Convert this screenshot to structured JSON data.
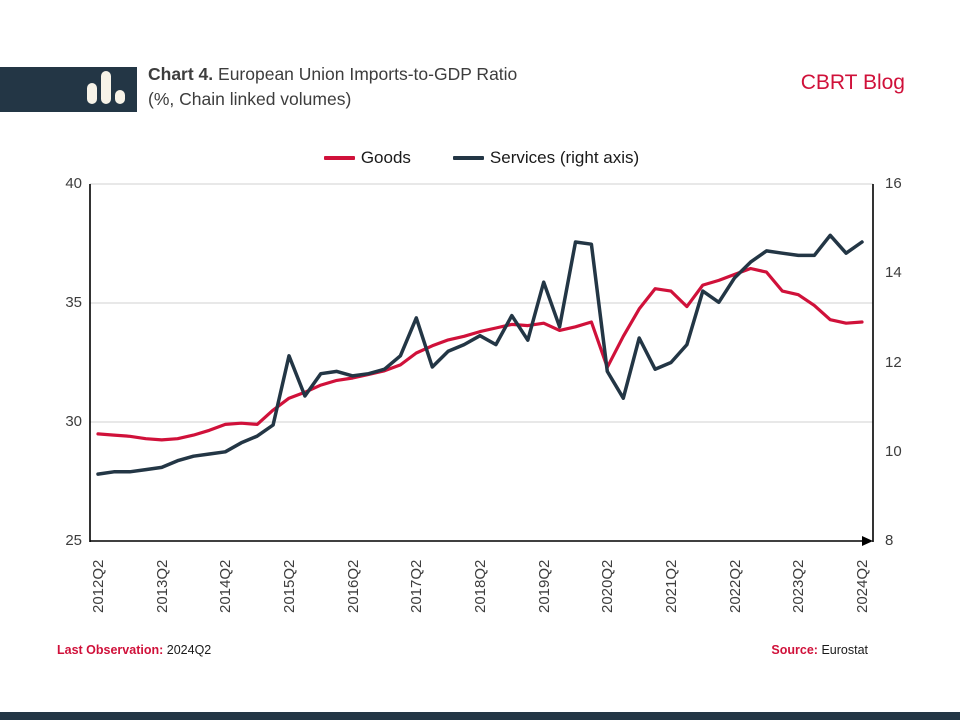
{
  "colors": {
    "brand_red": "#d0113a",
    "navy": "#233645",
    "grid": "#d9d9d9",
    "axis": "#000000",
    "text": "#3d3d3d"
  },
  "header": {
    "title_bold": "Chart 4.",
    "title_rest": " European Union Imports-to-GDP Ratio",
    "subtitle": "(%, Chain linked volumes)",
    "brand": "CBRT Blog",
    "logo_icon": "bar-chart-icon"
  },
  "legend": [
    {
      "label": "Goods",
      "color": "#d0113a"
    },
    {
      "label": "Services (right axis)",
      "color": "#233645"
    }
  ],
  "footer": {
    "last_obs_label": "Last Observation:",
    "last_obs_value": "2024Q2",
    "source_label": "Source:",
    "source_value": "Eurostat"
  },
  "chart_data": {
    "type": "line",
    "title": "European Union Imports-to-GDP Ratio (%, Chain linked volumes)",
    "x_tick_labels": [
      "2012Q2",
      "2013Q2",
      "2014Q2",
      "2015Q2",
      "2016Q2",
      "2017Q2",
      "2018Q2",
      "2019Q2",
      "2020Q2",
      "2021Q2",
      "2022Q2",
      "2023Q2",
      "2024Q2"
    ],
    "x_quarters_start": "2012Q2",
    "x_quarters_end": "2024Q2",
    "left_axis": {
      "ticks": [
        40,
        35,
        30,
        25
      ],
      "min": 25,
      "max": 40
    },
    "right_axis": {
      "ticks": [
        16,
        14,
        12,
        10,
        8
      ],
      "min": 8,
      "max": 16
    },
    "grid": "horizontal-left-axis",
    "legend_position": "top-center",
    "series": [
      {
        "name": "Goods",
        "axis": "left",
        "color": "#d0113a",
        "width": 3.2,
        "values": [
          29.5,
          29.45,
          29.4,
          29.3,
          29.25,
          29.3,
          29.45,
          29.65,
          29.9,
          29.95,
          29.9,
          30.5,
          31.0,
          31.25,
          31.55,
          31.75,
          31.85,
          32.0,
          32.15,
          32.4,
          32.9,
          33.2,
          33.45,
          33.6,
          33.8,
          33.95,
          34.1,
          34.05,
          34.15,
          33.85,
          34.0,
          34.2,
          32.3,
          33.6,
          34.75,
          35.6,
          35.5,
          34.85,
          35.75,
          35.95,
          36.2,
          36.45,
          36.3,
          35.5,
          35.35,
          34.9,
          34.3,
          34.15,
          34.2
        ]
      },
      {
        "name": "Services (right axis)",
        "axis": "right",
        "color": "#233645",
        "width": 3.5,
        "values": [
          9.5,
          9.55,
          9.55,
          9.6,
          9.65,
          9.8,
          9.9,
          9.95,
          10.0,
          10.2,
          10.35,
          10.6,
          12.15,
          11.25,
          11.75,
          11.8,
          11.7,
          11.75,
          11.85,
          12.15,
          13.0,
          11.9,
          12.25,
          12.4,
          12.6,
          12.4,
          13.05,
          12.5,
          13.8,
          12.8,
          14.7,
          14.65,
          11.8,
          11.2,
          12.55,
          11.85,
          12.0,
          12.4,
          13.6,
          13.35,
          13.9,
          14.25,
          14.5,
          14.45,
          14.4,
          14.4,
          14.85,
          14.45,
          14.7
        ]
      }
    ]
  }
}
